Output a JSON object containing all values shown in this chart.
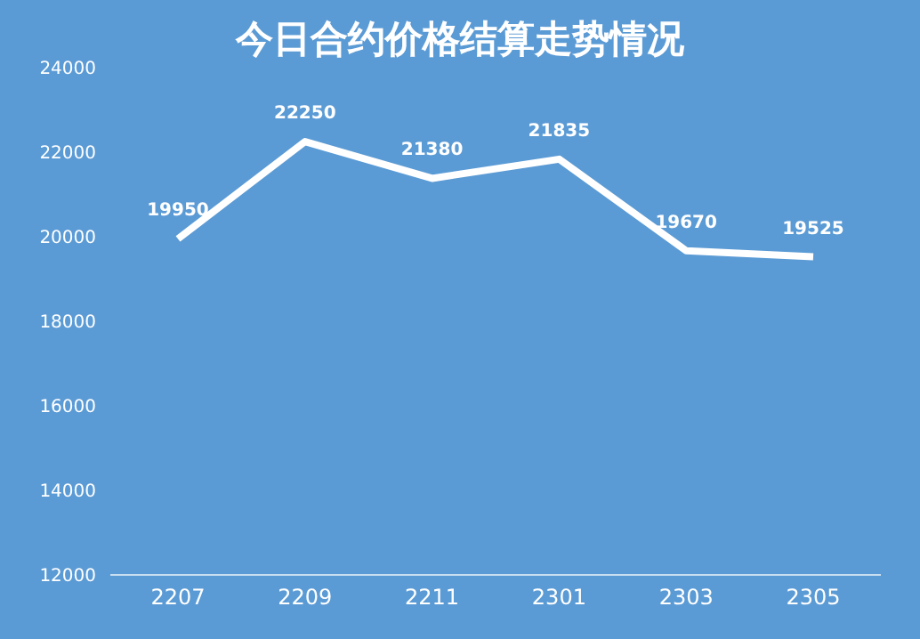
{
  "chart_data": {
    "type": "line",
    "title": "今日合约价格结算走势情况",
    "categories": [
      "2207",
      "2209",
      "2211",
      "2301",
      "2303",
      "2305"
    ],
    "series": [
      {
        "color": "#ffffff",
        "values": [
          19950,
          22250,
          21380,
          21835,
          19670,
          19525
        ]
      }
    ],
    "ylim": [
      12000,
      24000
    ],
    "yticks": [
      12000,
      14000,
      16000,
      18000,
      20000,
      22000,
      24000
    ],
    "grid": false,
    "legend": false,
    "marker": "none",
    "line_style": "solid",
    "data_labels": true
  }
}
